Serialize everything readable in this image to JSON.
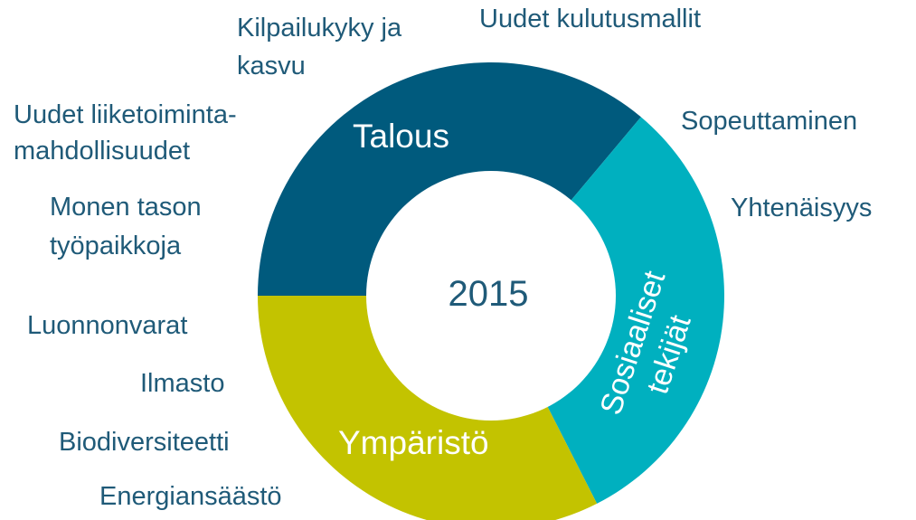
{
  "center": "2015",
  "segments": [
    {
      "lines": [
        "Talous"
      ]
    },
    {
      "lines": [
        "Sosiaaliset",
        "tekijät"
      ]
    },
    {
      "lines": [
        "Ympäristö"
      ]
    }
  ],
  "labels": [
    {
      "lines": [
        "Kilpailukyky ja",
        "kasvu"
      ]
    },
    {
      "lines": [
        "Uudet kulutusmallit"
      ]
    },
    {
      "lines": [
        "Uudet liiketoiminta-",
        "mahdollisuudet"
      ]
    },
    {
      "lines": [
        "Sopeuttaminen"
      ]
    },
    {
      "lines": [
        "Yhtenäisyys"
      ]
    },
    {
      "lines": [
        "Monen tason",
        "työpaikkoja"
      ]
    },
    {
      "lines": [
        "Luonnonvarat"
      ]
    },
    {
      "lines": [
        "Ilmasto"
      ]
    },
    {
      "lines": [
        "Biodiversiteetti"
      ]
    },
    {
      "lines": [
        "Energiansäästö"
      ]
    }
  ]
}
